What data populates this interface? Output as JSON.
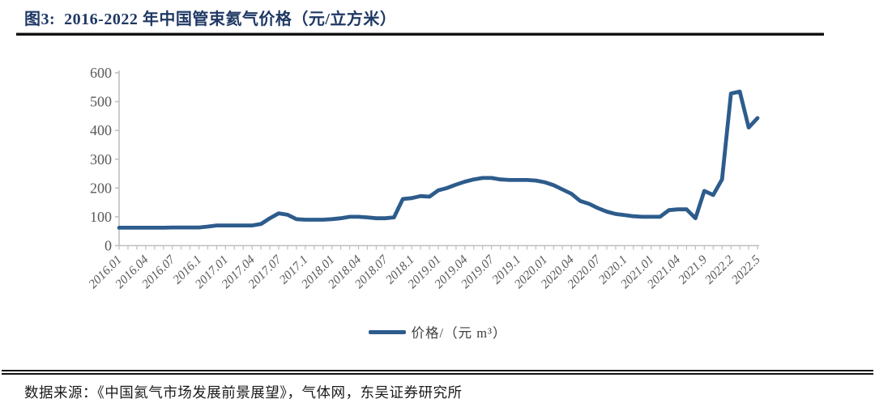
{
  "figure": {
    "title": "图3:  2016-2022 年中国管束氦气价格（元/立方米）",
    "source": "数据来源：《中国氦气市场发展前景展望》，气体网，东吴证券研究所"
  },
  "legend": {
    "label": "价格/（元 m³）"
  },
  "colors": {
    "line": "#2d5c8c",
    "axis": "#bfbfbf",
    "tick_label": "#595959",
    "title": "#1f3864"
  },
  "chart_data": {
    "type": "line",
    "title": "2016-2022 年中国管束氦气价格（元/立方米）",
    "xlabel": "",
    "ylabel": "",
    "ylim": [
      0,
      600
    ],
    "y_ticks": [
      0,
      100,
      200,
      300,
      400,
      500,
      600
    ],
    "grid": false,
    "legend_position": "bottom-center",
    "x_tick_labels": [
      "2016.01",
      "2016.04",
      "2016.07",
      "2016.1",
      "2017.01",
      "2017.04",
      "2017.07",
      "2017.1",
      "2018.01",
      "2018.04",
      "2018.07",
      "2018.1",
      "2019.01",
      "2019.04",
      "2019.07",
      "2019.1",
      "2020.01",
      "2020.04",
      "2020.07",
      "2020.1",
      "2021.01",
      "2021.04",
      "2021.9",
      "2022.2",
      "2022.5"
    ],
    "label_every_n_points": 3,
    "series": [
      {
        "name": "价格/（元 m³）",
        "values": [
          62,
          62,
          62,
          62,
          62,
          62,
          63,
          63,
          63,
          63,
          66,
          70,
          70,
          70,
          70,
          70,
          75,
          95,
          112,
          107,
          92,
          90,
          90,
          90,
          92,
          95,
          100,
          100,
          98,
          95,
          95,
          98,
          162,
          165,
          172,
          170,
          192,
          200,
          212,
          222,
          230,
          235,
          235,
          230,
          228,
          228,
          228,
          226,
          220,
          210,
          195,
          180,
          155,
          145,
          130,
          118,
          110,
          106,
          102,
          100,
          100,
          100,
          123,
          126,
          126,
          95,
          190,
          176,
          230,
          528,
          535,
          410,
          443
        ]
      }
    ]
  }
}
